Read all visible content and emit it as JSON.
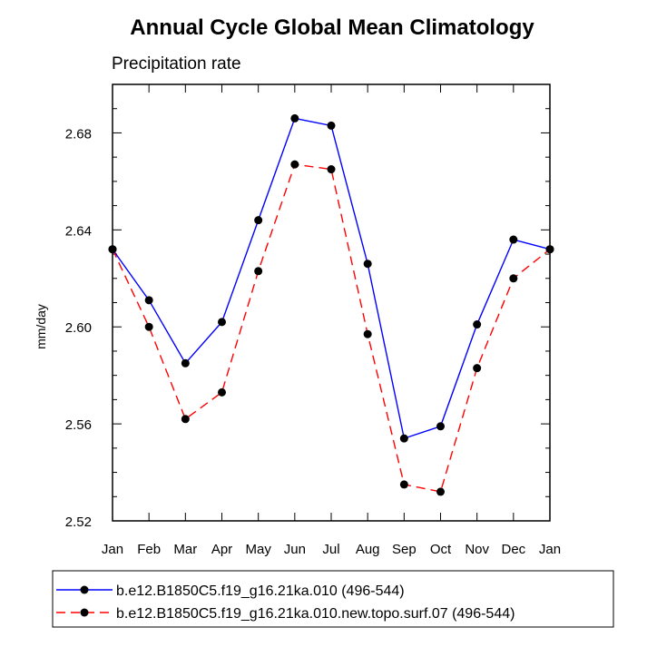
{
  "chart_data": {
    "type": "line",
    "title": "Annual Cycle Global Mean Climatology",
    "subtitle": "Precipitation rate",
    "xlabel": "",
    "ylabel": "mm/day",
    "categories": [
      "Jan",
      "Feb",
      "Mar",
      "Apr",
      "May",
      "Jun",
      "Jul",
      "Aug",
      "Sep",
      "Oct",
      "Nov",
      "Dec",
      "Jan"
    ],
    "ylim": [
      2.52,
      2.7
    ],
    "yticks": [
      2.52,
      2.56,
      2.6,
      2.64,
      2.68
    ],
    "ytick_labels": [
      "2.52",
      "2.56",
      "2.60",
      "2.64",
      "2.68"
    ],
    "series": [
      {
        "name": "b.e12.B1850C5.f19_g16.21ka.010 (496-544)",
        "color": "#0000ff",
        "dash": "solid",
        "values": [
          2.632,
          2.611,
          2.585,
          2.602,
          2.644,
          2.686,
          2.683,
          2.626,
          2.554,
          2.559,
          2.601,
          2.636,
          2.632
        ]
      },
      {
        "name": "b.e12.B1850C5.f19_g16.21ka.010.new.topo.surf.07 (496-544)",
        "color": "#ff0000",
        "dash": "dashed",
        "values": [
          2.632,
          2.6,
          2.562,
          2.573,
          2.623,
          2.667,
          2.665,
          2.597,
          2.535,
          2.532,
          2.583,
          2.62,
          2.632
        ]
      }
    ],
    "grid": false,
    "legend_position": "bottom"
  }
}
